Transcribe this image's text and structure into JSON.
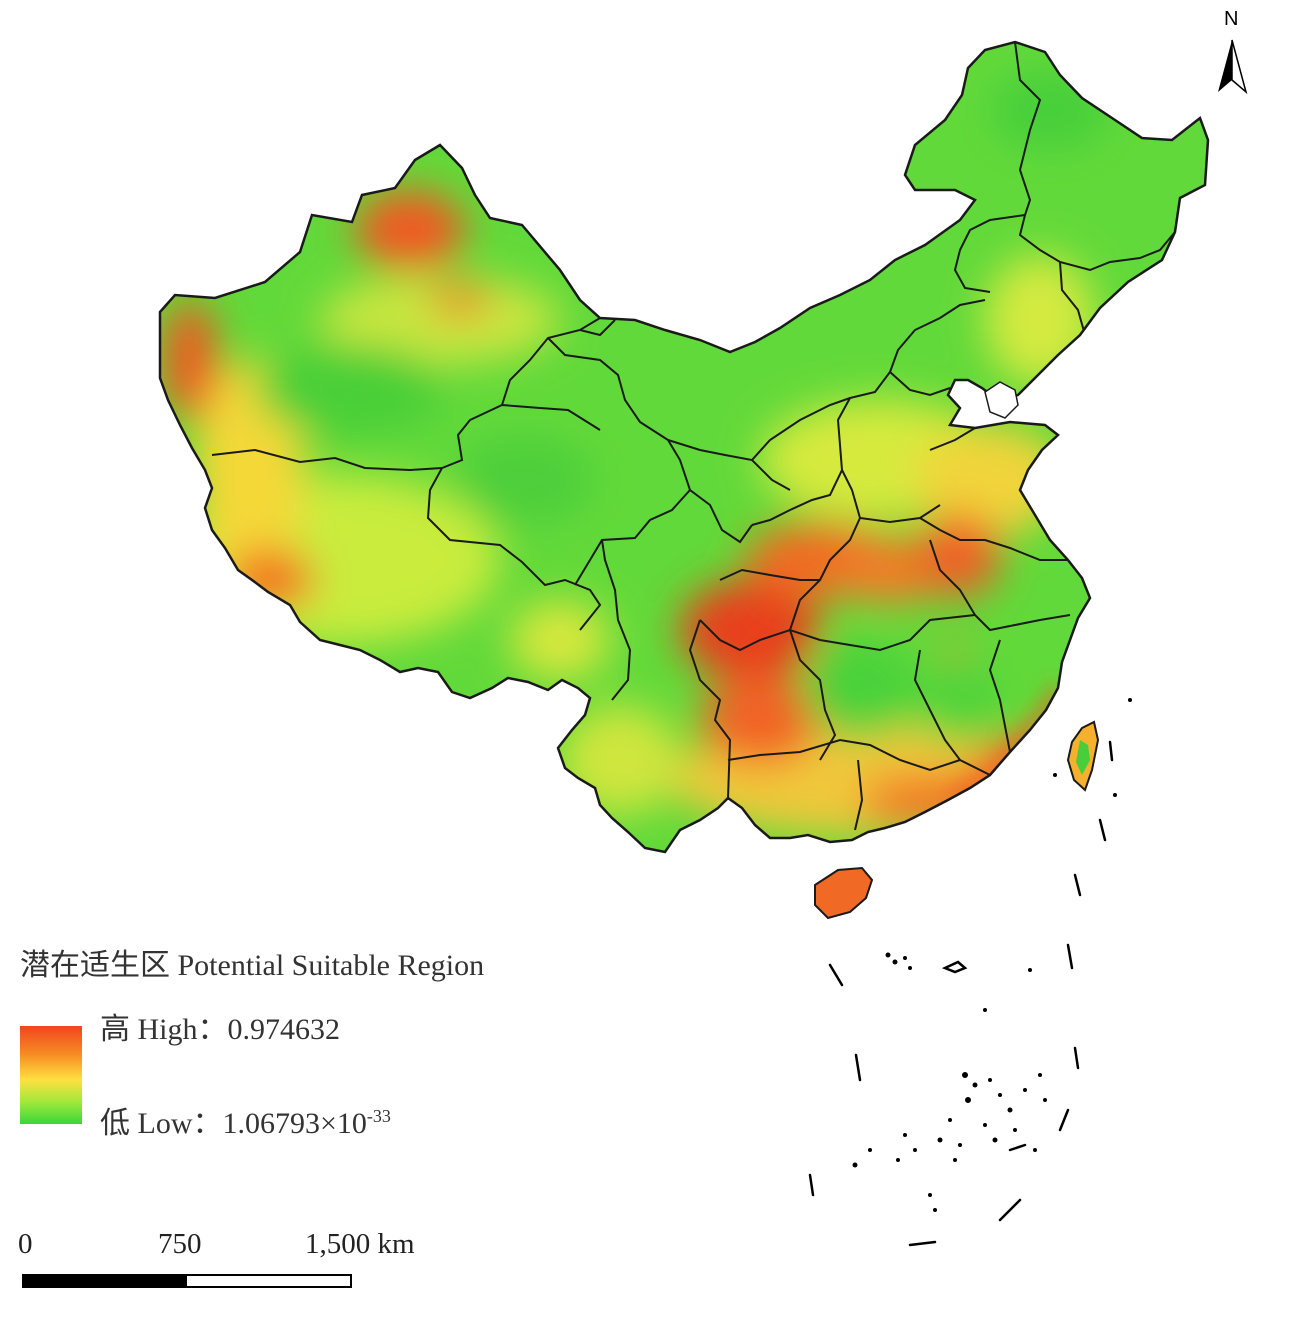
{
  "map": {
    "legend": {
      "title": "潜在适生区  Potential Suitable Region",
      "high_label": "高  High：0.974632",
      "low_prefix": "低  Low：1.06793×10",
      "low_exponent": "-33",
      "ramp_colors": [
        "#f04520",
        "#f68a22",
        "#ffe040",
        "#9fe83a",
        "#3ad63a"
      ]
    },
    "scale_bar": {
      "labels": [
        "0",
        "750",
        "1,500 km"
      ]
    },
    "north_arrow": {
      "label": "N",
      "icon": "north-arrow-icon"
    },
    "colors": {
      "high": "#f04520",
      "mid": "#ffe040",
      "low": "#3ad63a",
      "border": "#1a1a1a"
    }
  }
}
